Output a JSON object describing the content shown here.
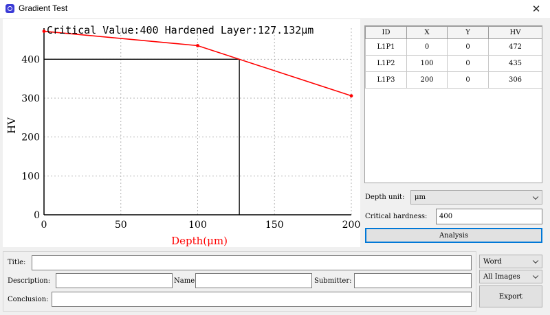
{
  "window": {
    "title": "Gradient Test",
    "icon": "camera-icon",
    "close_glyph": "✕"
  },
  "chart": {
    "header": "Critical Value:400  Hardened Layer:127.132μm",
    "colors": {
      "series": "#ff0000",
      "critical": "#000000",
      "grid": "#b4b4b4",
      "xlabel": "#ff0000"
    }
  },
  "chart_data": {
    "type": "line",
    "title": "Critical Value:400  Hardened Layer:127.132μm",
    "xlabel": "Depth(μm)",
    "ylabel": "HV",
    "xlim": [
      0,
      200
    ],
    "ylim": [
      0,
      480
    ],
    "xticks": [
      0,
      50,
      100,
      150,
      200
    ],
    "yticks": [
      0,
      100,
      200,
      300,
      400
    ],
    "grid": true,
    "series": [
      {
        "x": [
          0,
          100,
          200
        ],
        "y": [
          472,
          435,
          306
        ]
      }
    ],
    "critical_value": 400,
    "hardened_layer": 127.132
  },
  "table": {
    "columns": [
      "ID",
      "X",
      "Y",
      "HV"
    ],
    "rows": [
      [
        "L1P1",
        "0",
        "0",
        "472"
      ],
      [
        "L1P2",
        "100",
        "0",
        "435"
      ],
      [
        "L1P3",
        "200",
        "0",
        "306"
      ]
    ]
  },
  "controls": {
    "depth_unit_label": "Depth unit:",
    "depth_unit_value": "μm",
    "critical_hardness_label": "Critical hardness:",
    "critical_hardness_value": "400",
    "analysis_label": "Analysis"
  },
  "form": {
    "title_label": "Title:",
    "title_value": "",
    "description_label": "Description:",
    "description_value": "",
    "name_label": "Name:",
    "name_value": "",
    "submitter_label": "Submitter:",
    "submitter_value": "",
    "conclusion_label": "Conclusion:",
    "conclusion_value": ""
  },
  "export": {
    "format_value": "Word",
    "images_value": "All Images",
    "export_label": "Export"
  }
}
